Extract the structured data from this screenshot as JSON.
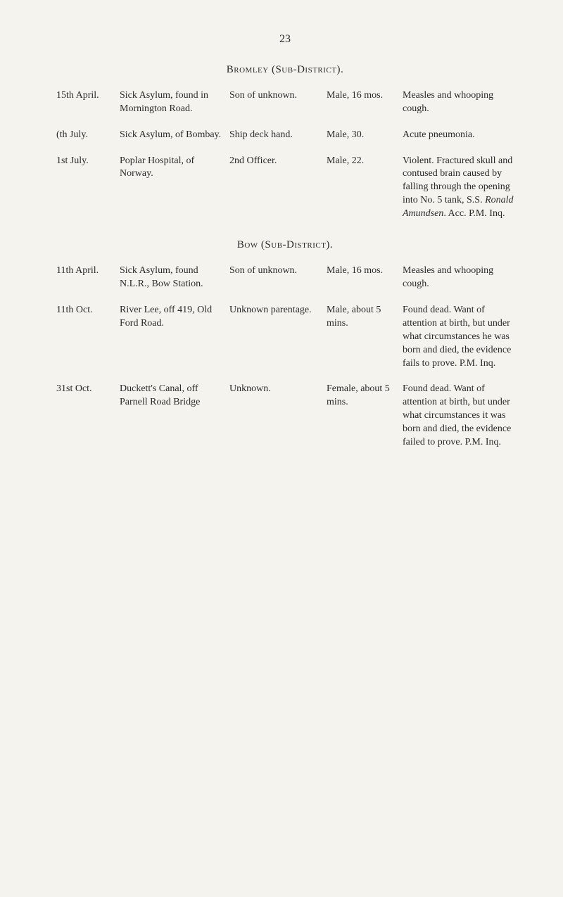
{
  "page_number": "23",
  "district_heading": "Bromley (Sub-District).",
  "sub_district_heading": "Bow (Sub-District).",
  "entries_bromley": [
    {
      "date": "15th April.",
      "place": "Sick Asylum, found in Mornington Road.",
      "parent": "Son of unknown.",
      "person": "Male, 16 mos.",
      "cause": "Measles and whooping cough."
    },
    {
      "date": "(th July.",
      "place": "Sick Asylum, of Bombay.",
      "parent": "Ship deck hand.",
      "person": "Male, 30.",
      "cause": "Acute pneumonia."
    },
    {
      "date": "1st July.",
      "place": "Poplar Hospital, of Norway.",
      "parent": "2nd Officer.",
      "person": "Male, 22.",
      "cause": "Violent. Fractured skull and contused brain caused by falling through the opening into No. 5 tank, S.S. Ronald Amundsen. Acc. P.M. Inq.",
      "cause_html": "Violent. Fractured skull and contused brain caused by falling through the opening into No. 5 tank, S.S. <span class=\"italic\">Ronald Amundsen</span>. Acc. P.M. Inq."
    }
  ],
  "entries_bow": [
    {
      "date": "11th April.",
      "place": "Sick Asylum, found N.L.R., Bow Station.",
      "parent": "Son of unknown.",
      "person": "Male, 16 mos.",
      "cause": "Measles and whooping cough."
    },
    {
      "date": "11th Oct.",
      "place": "River Lee, off 419, Old Ford Road.",
      "parent": "Unknown parentage.",
      "person": "Male, about 5 mins.",
      "cause": "Found dead. Want of attention at birth, but under what circumstances he was born and died, the evidence fails to prove. P.M. Inq."
    },
    {
      "date": "31st Oct.",
      "place": "Duckett's Canal, off Parnell Road Bridge",
      "parent": "Unknown.",
      "person": "Female, about 5 mins.",
      "cause": "Found dead. Want of attention at birth, but under what circumstances it was born and died, the evidence failed to prove. P.M. Inq."
    }
  ],
  "footer_dot": "•"
}
